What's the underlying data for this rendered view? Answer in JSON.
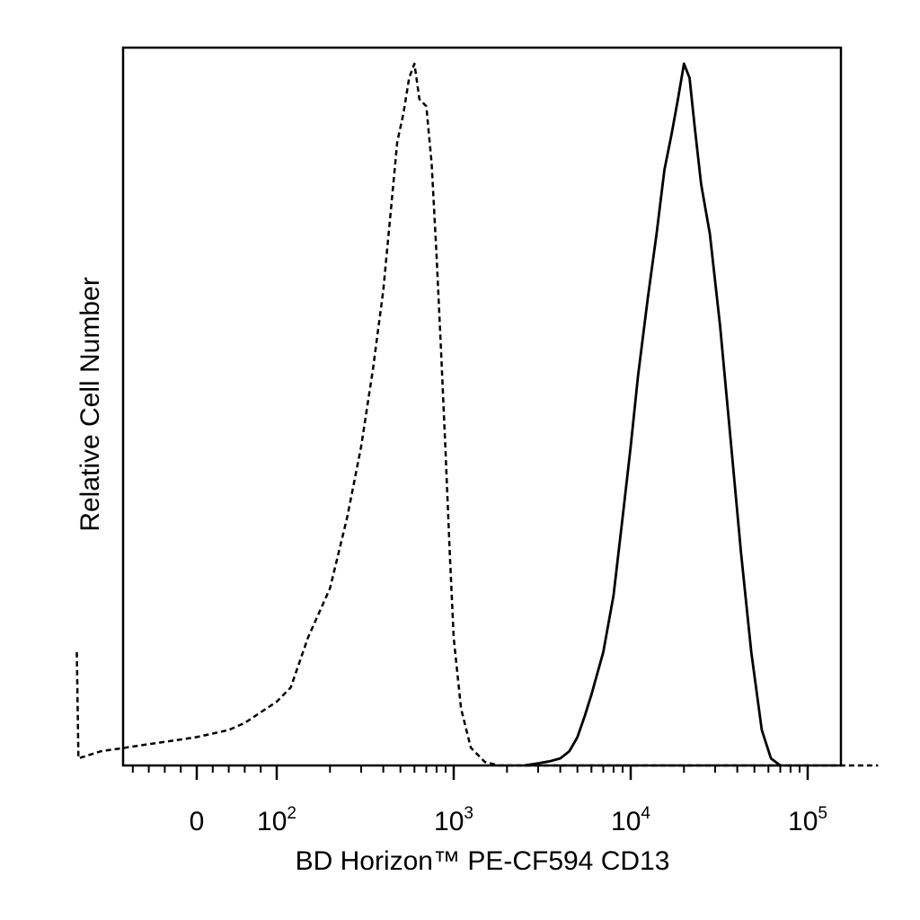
{
  "chart_data": {
    "type": "line",
    "title": "",
    "xlabel": "BD Horizon™ PE-CF594 CD13",
    "ylabel": "Relative Cell Number",
    "x_scale": "biexponential (linear near 0, log10 above 10^2)",
    "xlim": [
      -150,
      250000
    ],
    "ylim": [
      0,
      1
    ],
    "grid": false,
    "legend": "none",
    "x_ticks": [
      {
        "value": 0,
        "base": "0",
        "exp": ""
      },
      {
        "value": 100,
        "base": "10",
        "exp": "2"
      },
      {
        "value": 1000,
        "base": "10",
        "exp": "3"
      },
      {
        "value": 10000,
        "base": "10",
        "exp": "4"
      },
      {
        "value": 100000,
        "base": "10",
        "exp": "5"
      }
    ],
    "series": [
      {
        "style": "dashed",
        "color": "#000000",
        "points": [
          [
            -150,
            0.16
          ],
          [
            -148,
            0.01
          ],
          [
            -120,
            0.02
          ],
          [
            -90,
            0.025
          ],
          [
            -60,
            0.03
          ],
          [
            -30,
            0.035
          ],
          [
            0,
            0.04
          ],
          [
            20,
            0.045
          ],
          [
            40,
            0.05
          ],
          [
            60,
            0.06
          ],
          [
            80,
            0.075
          ],
          [
            100,
            0.09
          ],
          [
            120,
            0.11
          ],
          [
            150,
            0.18
          ],
          [
            200,
            0.25
          ],
          [
            250,
            0.35
          ],
          [
            300,
            0.45
          ],
          [
            350,
            0.56
          ],
          [
            400,
            0.67
          ],
          [
            440,
            0.78
          ],
          [
            480,
            0.88
          ],
          [
            520,
            0.92
          ],
          [
            560,
            0.97
          ],
          [
            600,
            0.99
          ],
          [
            640,
            0.94
          ],
          [
            700,
            0.93
          ],
          [
            750,
            0.85
          ],
          [
            800,
            0.72
          ],
          [
            850,
            0.58
          ],
          [
            900,
            0.44
          ],
          [
            950,
            0.3
          ],
          [
            1000,
            0.18
          ],
          [
            1100,
            0.08
          ],
          [
            1250,
            0.025
          ],
          [
            1500,
            0.005
          ],
          [
            1800,
            0.0
          ],
          [
            250000,
            0.0
          ]
        ]
      },
      {
        "style": "solid",
        "color": "#000000",
        "points": [
          [
            2500,
            0.0
          ],
          [
            3000,
            0.003
          ],
          [
            3500,
            0.006
          ],
          [
            4000,
            0.01
          ],
          [
            4500,
            0.02
          ],
          [
            5000,
            0.04
          ],
          [
            5500,
            0.07
          ],
          [
            6000,
            0.1
          ],
          [
            7000,
            0.16
          ],
          [
            8000,
            0.24
          ],
          [
            9000,
            0.35
          ],
          [
            10000,
            0.45
          ],
          [
            11000,
            0.55
          ],
          [
            12500,
            0.66
          ],
          [
            14000,
            0.75
          ],
          [
            15500,
            0.84
          ],
          [
            17000,
            0.89
          ],
          [
            18500,
            0.94
          ],
          [
            20000,
            0.99
          ],
          [
            21500,
            0.97
          ],
          [
            23000,
            0.9
          ],
          [
            25000,
            0.82
          ],
          [
            28000,
            0.75
          ],
          [
            32000,
            0.62
          ],
          [
            37000,
            0.45
          ],
          [
            42000,
            0.3
          ],
          [
            48000,
            0.16
          ],
          [
            55000,
            0.05
          ],
          [
            62000,
            0.01
          ],
          [
            70000,
            0.0
          ]
        ]
      }
    ]
  }
}
